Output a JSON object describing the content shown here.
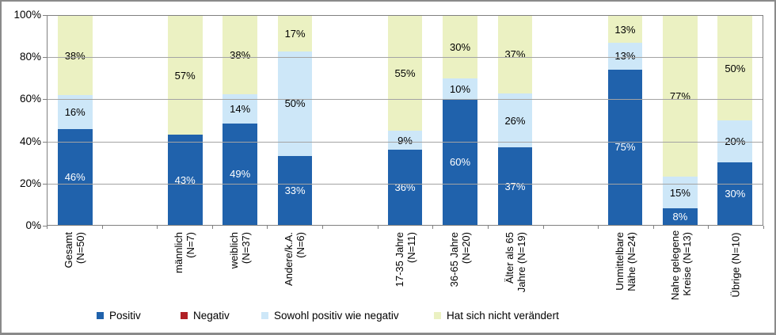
{
  "colors": {
    "positiv": "#2062AC",
    "negativ": "#B02025",
    "sowohl": "#CDE7F8",
    "unveraendert": "#EBF1C2",
    "gridline": "#A3A3A3",
    "axis": "#808080",
    "frame_border": "#8A8A8A"
  },
  "legend": {
    "items": [
      {
        "label": "Positiv",
        "color": "#2062AC"
      },
      {
        "label": "Negativ",
        "color": "#B02025"
      },
      {
        "label": "Sowohl positiv wie negativ",
        "color": "#CDE7F8"
      },
      {
        "label": "Hat sich nicht verändert",
        "color": "#EBF1C2"
      }
    ]
  },
  "chart_data": {
    "type": "bar",
    "subtype": "stacked-100-percent-column",
    "title": "",
    "xlabel": "",
    "ylabel": "",
    "ylim": [
      0,
      100
    ],
    "y_ticks": [
      "0%",
      "20%",
      "40%",
      "60%",
      "80%",
      "100%"
    ],
    "grid": "horizontal",
    "legend_position": "bottom",
    "total_slots": 13,
    "categories": [
      {
        "label": "Gesamt (N=50)",
        "label_lines": [
          "Gesamt",
          "(N=50)"
        ],
        "slot": 0
      },
      {
        "label": "männlich (N=7)",
        "label_lines": [
          "männlich",
          "(N=7)"
        ],
        "slot": 2
      },
      {
        "label": "weiblich (N=37)",
        "label_lines": [
          "weiblich",
          "(N=37)"
        ],
        "slot": 3
      },
      {
        "label": "Andere/k.A. (N=6)",
        "label_lines": [
          "Andere/k.A.",
          "(N=6)"
        ],
        "slot": 4
      },
      {
        "label": "17-35 Jahre (N=11)",
        "label_lines": [
          "17-35 Jahre",
          "(N=11)"
        ],
        "slot": 6
      },
      {
        "label": "36-65 Jahre (N=20)",
        "label_lines": [
          "36-65 Jahre",
          "(N=20)"
        ],
        "slot": 7
      },
      {
        "label": "Älter als 65 Jahre (N=19)",
        "label_lines": [
          "Älter als 65",
          "Jahre (N=19)"
        ],
        "slot": 8
      },
      {
        "label": "Unmittelbare Nähe (N=24)",
        "label_lines": [
          "Unmittelbare",
          "Nähe (N=24)"
        ],
        "slot": 10
      },
      {
        "label": "Nahe gelegene Kreise (N=13)",
        "label_lines": [
          "Nahe gelegene",
          "Kreise (N=13)"
        ],
        "slot": 11
      },
      {
        "label": "Übrige (N=10)",
        "label_lines": [
          "Übrige (N=10)"
        ],
        "slot": 12
      }
    ],
    "series": [
      {
        "name": "Positiv",
        "color": "#2062AC",
        "label_color": "#FFFFFF",
        "values": [
          46,
          43,
          49,
          33,
          36,
          60,
          37,
          75,
          8,
          30
        ]
      },
      {
        "name": "Negativ",
        "color": "#B02025",
        "label_color": "#000000",
        "values": [
          0,
          0,
          0,
          0,
          0,
          0,
          0,
          0,
          0,
          0
        ]
      },
      {
        "name": "Sowohl positiv wie negativ",
        "color": "#CDE7F8",
        "label_color": "#000000",
        "values": [
          16,
          0,
          14,
          50,
          9,
          10,
          26,
          13,
          15,
          20
        ]
      },
      {
        "name": "Hat sich nicht verändert",
        "color": "#EBF1C2",
        "label_color": "#000000",
        "values": [
          38,
          57,
          38,
          17,
          55,
          30,
          37,
          13,
          77,
          50
        ]
      }
    ],
    "data_label_format": "{v}%"
  }
}
